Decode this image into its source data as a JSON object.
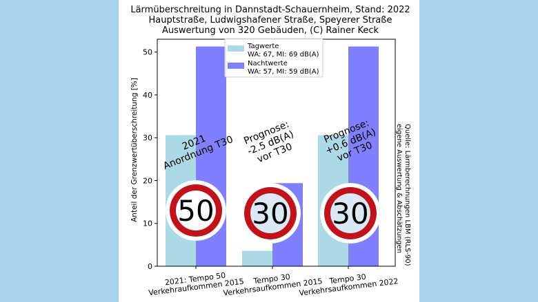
{
  "chart_data": {
    "type": "bar",
    "title_lines": [
      "Lärmüberschreitung in Dannstadt-Schauernheim, Stand: 2022",
      "Hauptstraße, Ludwigshafener Straße, Speyerer Straße",
      "Auswertung von 320 Gebäuden, (C) Rainer Keck"
    ],
    "ylabel": "Anteil der Grenzwertüberschreitung [%]",
    "ylim": [
      0,
      53
    ],
    "yticks": [
      0,
      10,
      20,
      30,
      40,
      50
    ],
    "categories": [
      [
        "2021: Tempo 50",
        "Verkehraufkommen 2015"
      ],
      [
        "Tempo 30",
        "Verkehrsaufkommen 2015"
      ],
      [
        "Tempo 30",
        "Verkehrsaufkommen 2022"
      ]
    ],
    "series": [
      {
        "name": "Tagwerte",
        "subtitle": "WA: 67, MI: 69 dB(A)",
        "color": "#add8e6",
        "values": [
          30.6,
          3.6,
          30.6
        ]
      },
      {
        "name": "Nachtwerte",
        "subtitle": "WA: 57, MI: 59 dB(A)",
        "color": "#8080ff",
        "values": [
          51.3,
          19.4,
          51.3
        ]
      }
    ],
    "legend_position": "top-center",
    "annotations": [
      {
        "lines": [
          "2021",
          "Anordnung T30"
        ]
      },
      {
        "lines": [
          "Prognose:",
          "-2.5 dB(A)",
          "vor T30"
        ]
      },
      {
        "lines": [
          "Prognose:",
          "+0.6 dB(A)",
          "vor T30"
        ]
      }
    ],
    "signs": [
      {
        "text": "50",
        "ring_color": "#c0121a",
        "fill_color": "#ffffff"
      },
      {
        "text": "30",
        "ring_color": "#c0121a",
        "fill_color": "#dde8f5"
      },
      {
        "text": "30",
        "ring_color": "#c0121a",
        "fill_color": "#dde8f5"
      }
    ],
    "source_lines": [
      "Quelle: Lärmberechnungen LBM (RLS-90)",
      "eigene Auswertung & Abschätzungen"
    ],
    "grid": false
  }
}
